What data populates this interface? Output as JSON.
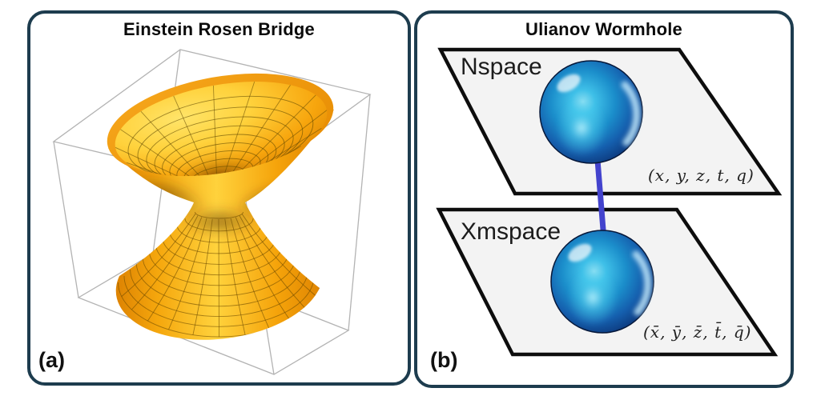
{
  "figure": {
    "panel_a": {
      "label": "(a)",
      "title": "Einstein Rosen Bridge"
    },
    "panel_b": {
      "label": "(b)",
      "title": "Ulianov Wormhole",
      "top_plane": {
        "name": "Nspace",
        "coords": "(x, y, z, t, q)"
      },
      "bottom_plane": {
        "name": "Xmspace",
        "coords": "(x̄, ȳ, z̄, t̄, q̄)"
      }
    },
    "colors": {
      "panel_border": "#1d3c4e",
      "surface_gold": "#ffd23c",
      "surface_orange": "#ef9602",
      "surface_shadow": "#5a3700",
      "mesh_line": "#6b4a00",
      "cube_line": "#b3b3b3",
      "plane_fill": "#f3f3f3",
      "plane_border": "#0d0d0d",
      "sphere_cyan": "#2ab9e8",
      "sphere_blue": "#155fae",
      "sphere_edge": "#081f4e",
      "connection_line": "#4343cd"
    }
  }
}
